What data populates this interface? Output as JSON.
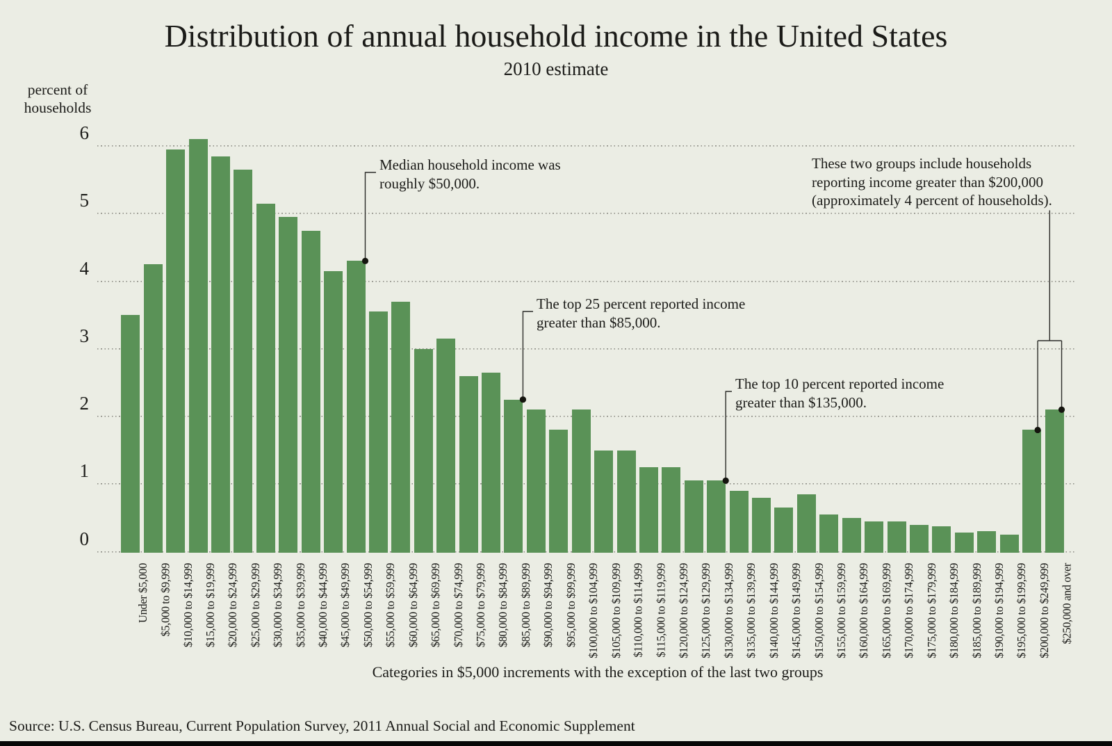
{
  "page": {
    "title": "Distribution of annual household income in the United States",
    "subtitle": "2010 estimate",
    "y_axis_title_line1": "percent of",
    "y_axis_title_line2": "households",
    "caption": "Categories in $5,000 increments with the exception of the last two groups",
    "source": "Source: U.S. Census Bureau, Current Population Survey, 2011 Annual Social and Economic Supplement"
  },
  "colors": {
    "background": "#EBEDE4",
    "bar": "#5A9257",
    "text": "#1B1B18",
    "gridline": "#8D8D85",
    "connector": "#2B2B28",
    "annotation_dot": "#15150F",
    "bottom_strip": "#070707"
  },
  "chart_data": {
    "type": "bar",
    "title": "Distribution of annual household income in the United States",
    "subtitle": "2010 estimate",
    "ylabel": "percent of households",
    "xlabel": "Categories in $5,000 increments with the exception of the last two groups",
    "source": "Source: U.S. Census Bureau, Current Population Survey, 2011 Annual Social and Economic Supplement",
    "ylim": [
      0,
      6
    ],
    "yticks": [
      0,
      1,
      2,
      3,
      4,
      5,
      6
    ],
    "grid": "horizontal-dotted",
    "legend": "none",
    "categories": [
      "Under $5,000",
      "$5,000 to $9,999",
      "$10,000 to $14,999",
      "$15,000 to $19,999",
      "$20,000 to $24,999",
      "$25,000 to $29,999",
      "$30,000 to $34,999",
      "$35,000 to $39,999",
      "$40,000 to $44,999",
      "$45,000 to $49,999",
      "$50,000 to $54,999",
      "$55,000 to $59,999",
      "$60,000 to $64,999",
      "$65,000 to $69,999",
      "$70,000 to $74,999",
      "$75,000 to $79,999",
      "$80,000 to $84,999",
      "$85,000 to $89,999",
      "$90,000 to $94,999",
      "$95,000 to $99,999",
      "$100,000 to $104,999",
      "$105,000 to $109,999",
      "$110,000 to $114,999",
      "$115,000 to $119,999",
      "$120,000 to $124,999",
      "$125,000 to $129,999",
      "$130,000 to $134,999",
      "$135,000 to $139,999",
      "$140,000 to $144,999",
      "$145,000 to $149,999",
      "$150,000 to $154,999",
      "$155,000 to $159,999",
      "$160,000 to $164,999",
      "$165,000 to $169,999",
      "$170,000 to $174,999",
      "$175,000 to $179,999",
      "$180,000 to $184,999",
      "$185,000 to $189,999",
      "$190,000 to $194,999",
      "$195,000 to $199,999",
      "$200,000 to $249,999",
      "$250,000 and over"
    ],
    "values": [
      3.5,
      4.25,
      5.95,
      6.1,
      5.85,
      5.65,
      5.15,
      4.95,
      4.75,
      4.15,
      4.3,
      3.55,
      3.7,
      3.0,
      3.15,
      2.6,
      2.65,
      2.25,
      2.1,
      1.8,
      2.1,
      1.5,
      1.5,
      1.25,
      1.25,
      1.05,
      1.05,
      0.9,
      0.8,
      0.65,
      0.85,
      0.55,
      0.5,
      0.45,
      0.45,
      0.4,
      0.38,
      0.28,
      0.3,
      0.25,
      1.8,
      2.1
    ],
    "annotations": [
      {
        "id": "median",
        "lines": [
          "Median household income was",
          "roughly $50,000."
        ],
        "target_category": "$50,000 to $54,999"
      },
      {
        "id": "top25",
        "lines": [
          "The top 25 percent reported income",
          "greater than $85,000."
        ],
        "target_category": "$85,000 to $89,999"
      },
      {
        "id": "top10",
        "lines": [
          "The top 10 percent reported income",
          "greater than $135,000."
        ],
        "target_category": "$130,000 to $134,999"
      },
      {
        "id": "groups",
        "lines": [
          "These two groups include households",
          "reporting income greater than $200,000",
          "(approximately 4 percent of households)."
        ],
        "target_categories": [
          "$200,000 to $249,999",
          "$250,000 and over"
        ]
      }
    ]
  }
}
